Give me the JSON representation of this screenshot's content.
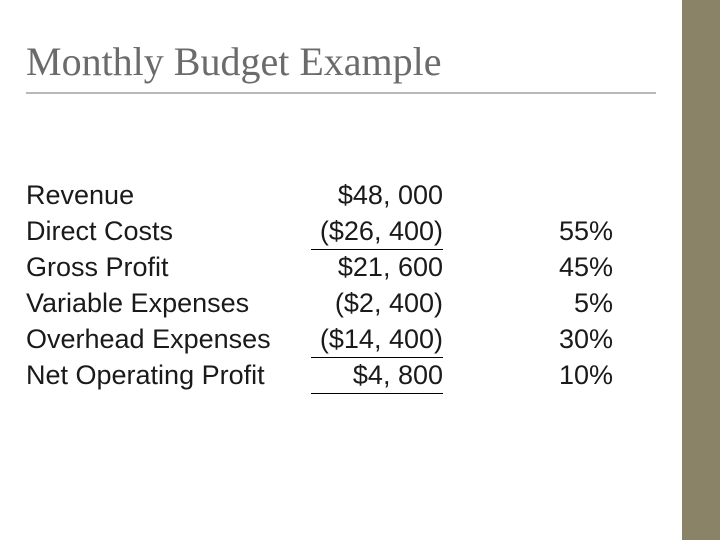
{
  "title": "Monthly Budget Example",
  "layout": {
    "sidebar_color": "#8a8367",
    "title_color": "#6b6b6b",
    "title_fontsize": 40,
    "body_fontsize": 27,
    "underline_color": "#b8b8b8"
  },
  "budget": {
    "rows": [
      {
        "label": "Revenue",
        "amount": "$48, 000",
        "pct": "",
        "border": ""
      },
      {
        "label": "Direct Costs",
        "amount": "($26, 400)",
        "pct": "55%",
        "border": "bb"
      },
      {
        "label": "Gross Profit",
        "amount": "$21, 600",
        "pct": "45%",
        "border": ""
      },
      {
        "label": "Variable Expenses",
        "amount": "($2, 400)",
        "pct": "5%",
        "border": ""
      },
      {
        "label": "Overhead Expenses",
        "amount": "($14, 400)",
        "pct": "30%",
        "border": "bb"
      },
      {
        "label": "Net Operating Profit",
        "amount": "$4, 800",
        "pct": "10%",
        "border": "bb"
      }
    ]
  }
}
